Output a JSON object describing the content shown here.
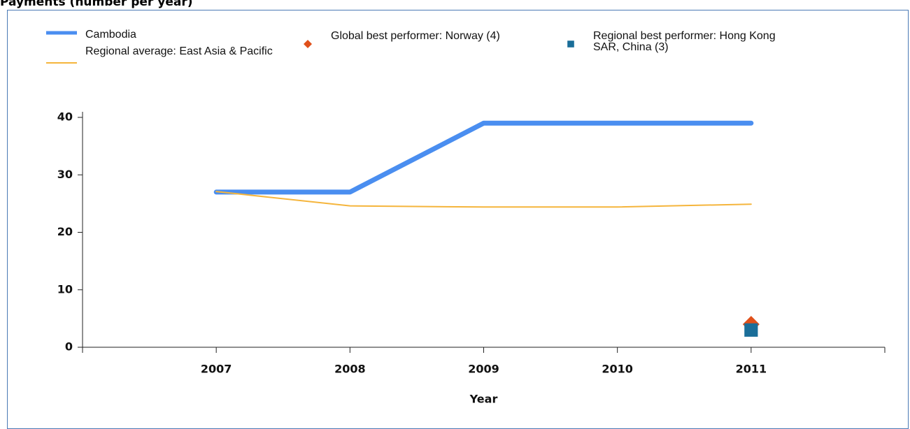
{
  "chart_data": {
    "type": "line",
    "title": "Payments (number per year)",
    "x_label": "Year",
    "x": [
      2007,
      2008,
      2009,
      2010,
      2011
    ],
    "series": [
      {
        "name": "Cambodia",
        "color": "#4a8ef0",
        "values": [
          27,
          27,
          39,
          39,
          39
        ]
      },
      {
        "name": "Regional average: East Asia & Pacific",
        "color": "#f5b53c",
        "values": [
          27.1,
          24.6,
          24.4,
          24.4,
          24.9
        ]
      },
      {
        "name": "Global best performer: Norway (4)",
        "color": "#e0501a",
        "marker": "diamond",
        "values": [
          null,
          null,
          null,
          null,
          4
        ]
      },
      {
        "name": "Regional best performer: Hong Kong SAR, China (3)",
        "color": "#1a6e99",
        "marker": "square",
        "values": [
          null,
          null,
          null,
          null,
          3
        ]
      }
    ],
    "xlim": [
      2006,
      2012
    ],
    "xticks": [
      2007,
      2008,
      2009,
      2010,
      2011
    ],
    "ylim": [
      0,
      40
    ],
    "yticks": [
      0,
      10,
      20,
      30,
      40
    ]
  }
}
